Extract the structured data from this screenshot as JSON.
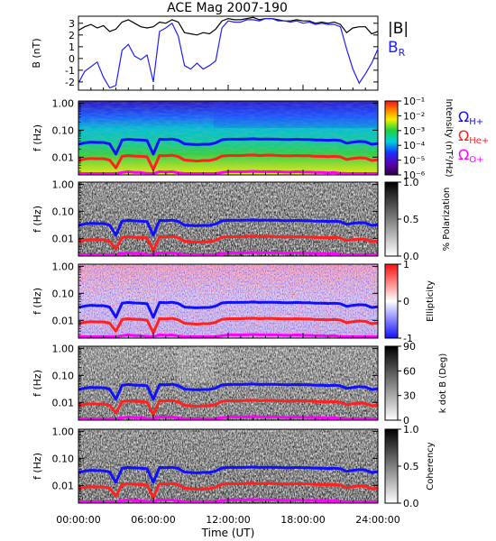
{
  "title": "ACE Mag 2007-190",
  "xlabel": "Time (UT)",
  "x_ticks": [
    "00:00:00",
    "06:00:00",
    "12:00:00",
    "18:00:00",
    "24:00:00"
  ],
  "colors": {
    "B_magnitude": "#000000",
    "B_radial": "#2020ff",
    "Omega_H": "#1010ff",
    "Omega_He": "#ff2020",
    "Omega_O": "#ff00ff"
  },
  "chart_data": [
    {
      "id": "mag",
      "type": "line",
      "ylabel": "B (nT)",
      "yticks": [
        "-2",
        "-1",
        "0",
        "1",
        "2",
        "3"
      ],
      "ylim": [
        -2.7,
        3.6
      ],
      "xlim_hours": [
        0,
        24
      ],
      "legend": [
        "|B|",
        "B_R"
      ],
      "series": [
        {
          "name": "|B|",
          "x": [
            0,
            0.5,
            1,
            1.5,
            2,
            2.5,
            3,
            3.5,
            4,
            4.5,
            5,
            5.5,
            6,
            6.5,
            7,
            7.5,
            8,
            8.5,
            9,
            9.5,
            10,
            10.5,
            11,
            11.5,
            12,
            12.5,
            13,
            13.5,
            14,
            14.5,
            15,
            15.5,
            16,
            16.5,
            17,
            17.5,
            18,
            18.5,
            19,
            19.5,
            20,
            20.5,
            21,
            21.5,
            22,
            22.5,
            23,
            23.5,
            24
          ],
          "values": [
            2.4,
            2.7,
            2.9,
            2.6,
            2.8,
            2.3,
            2.5,
            3.1,
            3.3,
            3.0,
            2.7,
            2.6,
            2.7,
            3.1,
            3.0,
            3.3,
            3.1,
            2.2,
            2.1,
            2.0,
            2.2,
            2.1,
            2.5,
            3.2,
            3.4,
            3.3,
            3.3,
            3.4,
            3.5,
            3.3,
            3.4,
            3.4,
            3.3,
            3.2,
            3.2,
            3.3,
            3.2,
            3.2,
            3.0,
            3.1,
            3.0,
            3.1,
            2.9,
            2.2,
            2.6,
            2.7,
            2.7,
            2.1,
            2.3
          ]
        },
        {
          "name": "B_R",
          "x": [
            0,
            0.5,
            1,
            1.5,
            2,
            2.5,
            3,
            3.5,
            4,
            4.5,
            5,
            5.5,
            6,
            6.5,
            7,
            7.5,
            8,
            8.5,
            9,
            9.5,
            10,
            10.5,
            11,
            11.5,
            12,
            12.5,
            13,
            13.5,
            14,
            14.5,
            15,
            15.5,
            16,
            16.5,
            17,
            17.5,
            18,
            18.5,
            19,
            19.5,
            20,
            20.5,
            21,
            21.5,
            22,
            22.5,
            23,
            23.5,
            24
          ],
          "values": [
            -2.1,
            -1.1,
            -0.7,
            -0.3,
            -1.6,
            -2.5,
            -2.3,
            0.7,
            1.2,
            0.2,
            -0.1,
            0.3,
            -2.0,
            2.3,
            2.6,
            3.0,
            1.9,
            -0.6,
            -0.9,
            -0.4,
            -0.9,
            -0.6,
            -0.2,
            2.6,
            3.2,
            3.1,
            3.1,
            3.3,
            3.3,
            3.2,
            3.4,
            3.4,
            3.2,
            3.2,
            3.1,
            3.2,
            3.0,
            3.1,
            2.9,
            3.0,
            2.9,
            2.9,
            2.7,
            0.8,
            -0.9,
            -2.1,
            -1.3,
            -0.4,
            0.8
          ]
        }
      ]
    },
    {
      "id": "intensity",
      "type": "heatmap",
      "ylabel": "f (Hz)",
      "yticks": [
        "0.01",
        "0.10",
        "1.00"
      ],
      "colorbar": {
        "label": "Intensity (nT²/Hz)",
        "ticks": [
          "10⁻⁶",
          "10⁻⁵",
          "10⁻⁴",
          "10⁻³",
          "10⁻²",
          "10⁻¹"
        ],
        "scale": "rainbow"
      },
      "legend": [
        "ΩH+",
        "ΩHe+",
        "ΩO+"
      ]
    },
    {
      "id": "polarization",
      "type": "heatmap",
      "ylabel": "f (Hz)",
      "yticks": [
        "0.01",
        "0.10",
        "1.00"
      ],
      "colorbar": {
        "label": "% Polarization",
        "ticks": [
          "0.0",
          "0.5",
          "1.0"
        ],
        "scale": "gray"
      }
    },
    {
      "id": "ellipticity",
      "type": "heatmap",
      "ylabel": "f (Hz)",
      "yticks": [
        "0.01",
        "0.10",
        "1.00"
      ],
      "colorbar": {
        "label": "Ellipticity",
        "ticks": [
          "-1",
          "0",
          "1"
        ],
        "scale": "blue-white-red"
      }
    },
    {
      "id": "kdotb",
      "type": "heatmap",
      "ylabel": "f (Hz)",
      "yticks": [
        "0.01",
        "0.10",
        "1.00"
      ],
      "colorbar": {
        "label": "k dot B (Deg)",
        "ticks": [
          "0",
          "30",
          "60",
          "90"
        ],
        "scale": "gray"
      }
    },
    {
      "id": "coherency",
      "type": "heatmap",
      "ylabel": "f (Hz)",
      "yticks": [
        "0.01",
        "0.10",
        "1.00"
      ],
      "colorbar": {
        "label": "Coherency",
        "ticks": [
          "0.0",
          "0.5",
          "1.0"
        ],
        "scale": "gray"
      }
    },
    {
      "id": "gyrofrequencies",
      "type": "line",
      "note_units": "Hz",
      "x": [
        0,
        0.5,
        1,
        1.5,
        2,
        2.5,
        3,
        3.5,
        4,
        4.5,
        5,
        5.5,
        6,
        6.5,
        7,
        7.5,
        8,
        8.5,
        9,
        9.5,
        10,
        10.5,
        11,
        11.5,
        12,
        12.5,
        13,
        13.5,
        14,
        14.5,
        15,
        15.5,
        16,
        16.5,
        17,
        17.5,
        18,
        18.5,
        19,
        19.5,
        20,
        20.5,
        21,
        21.5,
        22,
        22.5,
        23,
        23.5,
        24
      ],
      "series": [
        {
          "name": "ΩH+",
          "values": [
            0.03,
            0.034,
            0.036,
            0.035,
            0.035,
            0.031,
            0.013,
            0.043,
            0.046,
            0.044,
            0.043,
            0.041,
            0.013,
            0.046,
            0.045,
            0.047,
            0.042,
            0.031,
            0.03,
            0.029,
            0.03,
            0.03,
            0.034,
            0.044,
            0.046,
            0.046,
            0.046,
            0.047,
            0.048,
            0.046,
            0.047,
            0.047,
            0.046,
            0.045,
            0.045,
            0.046,
            0.045,
            0.045,
            0.043,
            0.043,
            0.042,
            0.043,
            0.041,
            0.033,
            0.036,
            0.038,
            0.037,
            0.03,
            0.032
          ]
        },
        {
          "name": "ΩHe+",
          "values": [
            0.0075,
            0.0085,
            0.009,
            0.0088,
            0.0088,
            0.0078,
            0.004,
            0.0107,
            0.0115,
            0.011,
            0.0107,
            0.0102,
            0.0035,
            0.0115,
            0.0112,
            0.0118,
            0.0105,
            0.0078,
            0.0075,
            0.0072,
            0.0075,
            0.0075,
            0.0085,
            0.011,
            0.0115,
            0.0115,
            0.0115,
            0.0118,
            0.012,
            0.0115,
            0.0118,
            0.0118,
            0.0115,
            0.0112,
            0.0112,
            0.0115,
            0.0112,
            0.0112,
            0.0107,
            0.0107,
            0.0105,
            0.0107,
            0.0102,
            0.0082,
            0.009,
            0.0095,
            0.0092,
            0.0075,
            0.008
          ]
        },
        {
          "name": "ΩO+",
          "values": [
            0.0019,
            0.0021,
            0.0022,
            0.0022,
            0.0022,
            0.0019,
            0.001,
            0.0027,
            0.0029,
            0.0027,
            0.0027,
            0.0025,
            0.0009,
            0.0029,
            0.0028,
            0.0029,
            0.0026,
            0.0019,
            0.0019,
            0.0018,
            0.0019,
            0.0019,
            0.0021,
            0.0027,
            0.0029,
            0.0029,
            0.0029,
            0.0029,
            0.003,
            0.0029,
            0.0029,
            0.0029,
            0.0029,
            0.0028,
            0.0028,
            0.0029,
            0.0028,
            0.0028,
            0.0027,
            0.0027,
            0.0026,
            0.0027,
            0.0025,
            0.002,
            0.0022,
            0.0024,
            0.0023,
            0.0019,
            0.002
          ]
        }
      ]
    }
  ]
}
